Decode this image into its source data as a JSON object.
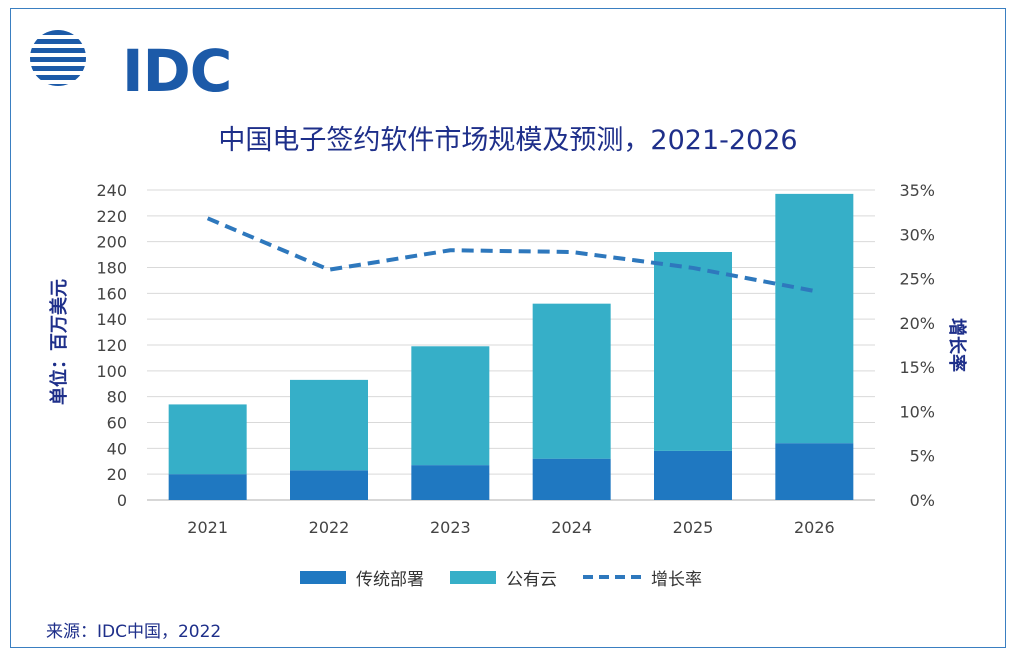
{
  "logo": {
    "text": "IDC",
    "color": "#1c5aa8"
  },
  "source": "来源：IDC中国，2022",
  "colors": {
    "traditional": "#1f78c1",
    "cloud": "#36afc8",
    "growth": "#2e78bd",
    "text": "#1e2f8a"
  },
  "chart_data": {
    "type": "bar",
    "stacked": true,
    "title": "中国电子签约软件市场规模及预测，2021-2026",
    "ylabel": "单位：百万美元",
    "y2label": "增长率",
    "categories": [
      "2021",
      "2022",
      "2023",
      "2024",
      "2025",
      "2026"
    ],
    "ylim": [
      0,
      240
    ],
    "y_ticks": [
      "0",
      "20",
      "40",
      "60",
      "80",
      "100",
      "120",
      "140",
      "160",
      "180",
      "200",
      "220",
      "240"
    ],
    "y2lim": [
      0,
      35
    ],
    "y2_ticks": [
      "0%",
      "5%",
      "10%",
      "15%",
      "20%",
      "25%",
      "30%",
      "35%"
    ],
    "series": [
      {
        "name": "传统部署",
        "type": "bar",
        "values": [
          20,
          23,
          27,
          32,
          38,
          44
        ]
      },
      {
        "name": "公有云",
        "type": "bar",
        "values": [
          54,
          70,
          92,
          120,
          154,
          193
        ]
      },
      {
        "name": "增长率",
        "type": "line",
        "style": "dashed",
        "axis": "right",
        "values": [
          31.8,
          26.0,
          28.2,
          28.0,
          26.2,
          23.6
        ]
      }
    ],
    "legend_position": "bottom",
    "grid": true
  }
}
